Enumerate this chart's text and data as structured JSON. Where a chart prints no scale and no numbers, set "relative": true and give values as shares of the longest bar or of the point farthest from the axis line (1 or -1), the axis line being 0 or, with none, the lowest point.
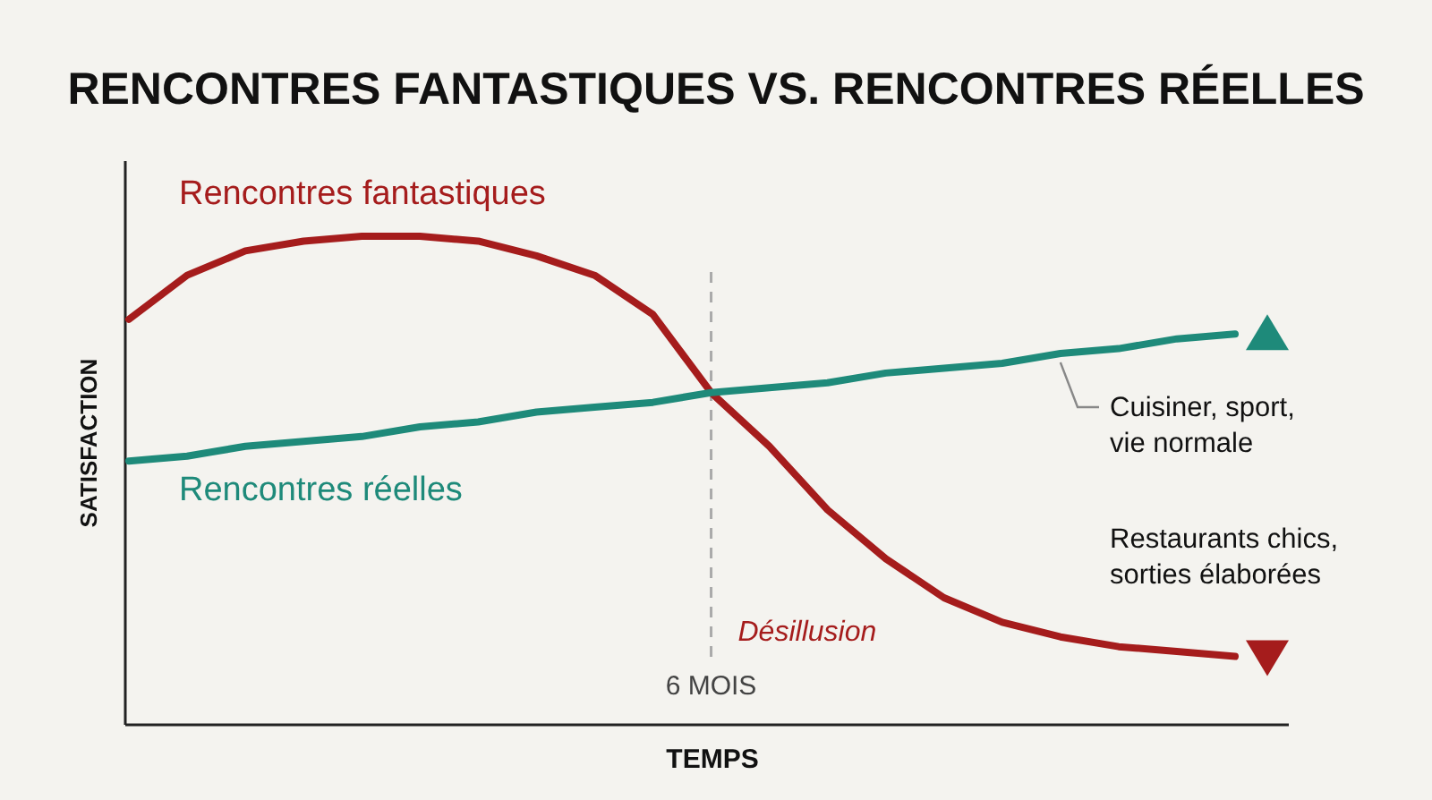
{
  "chart_data": {
    "type": "line",
    "title": "RENCONTRES FANTASTIQUES VS. RENCONTRES RÉELLES",
    "xlabel": "TEMPS",
    "ylabel": "SATISFACTION",
    "relative": true,
    "line_style": "solid",
    "categories": [
      null,
      null,
      null,
      null,
      null,
      null,
      null,
      null,
      null,
      null,
      null,
      null,
      null,
      null,
      null,
      null,
      null,
      null,
      null,
      null
    ],
    "series": [
      {
        "name": "Rencontres fantastiques",
        "color": "#a51c1c",
        "values": [
          0.83,
          0.92,
          0.97,
          0.99,
          1,
          1,
          0.99,
          0.96,
          0.92,
          0.84,
          0.68,
          0.57,
          0.44,
          0.34,
          0.26,
          0.21,
          0.18,
          0.16,
          0.15,
          0.14
        ]
      },
      {
        "name": "Rencontres réelles",
        "color": "#1e8a7a",
        "values": [
          0.54,
          0.55,
          0.57,
          0.58,
          0.59,
          0.61,
          0.62,
          0.64,
          0.65,
          0.66,
          0.68,
          0.69,
          0.7,
          0.72,
          0.73,
          0.74,
          0.76,
          0.77,
          0.79,
          0.8
        ]
      }
    ],
    "ref_lines": [
      {
        "axis": "x",
        "label": "6 MOIS",
        "color": "#aaaaaa",
        "line_style": "dashed"
      }
    ],
    "annotations": [
      "Cuisiner, sport, vie normale",
      "Restaurants chics, sorties élaborées",
      "Désillusion"
    ]
  }
}
